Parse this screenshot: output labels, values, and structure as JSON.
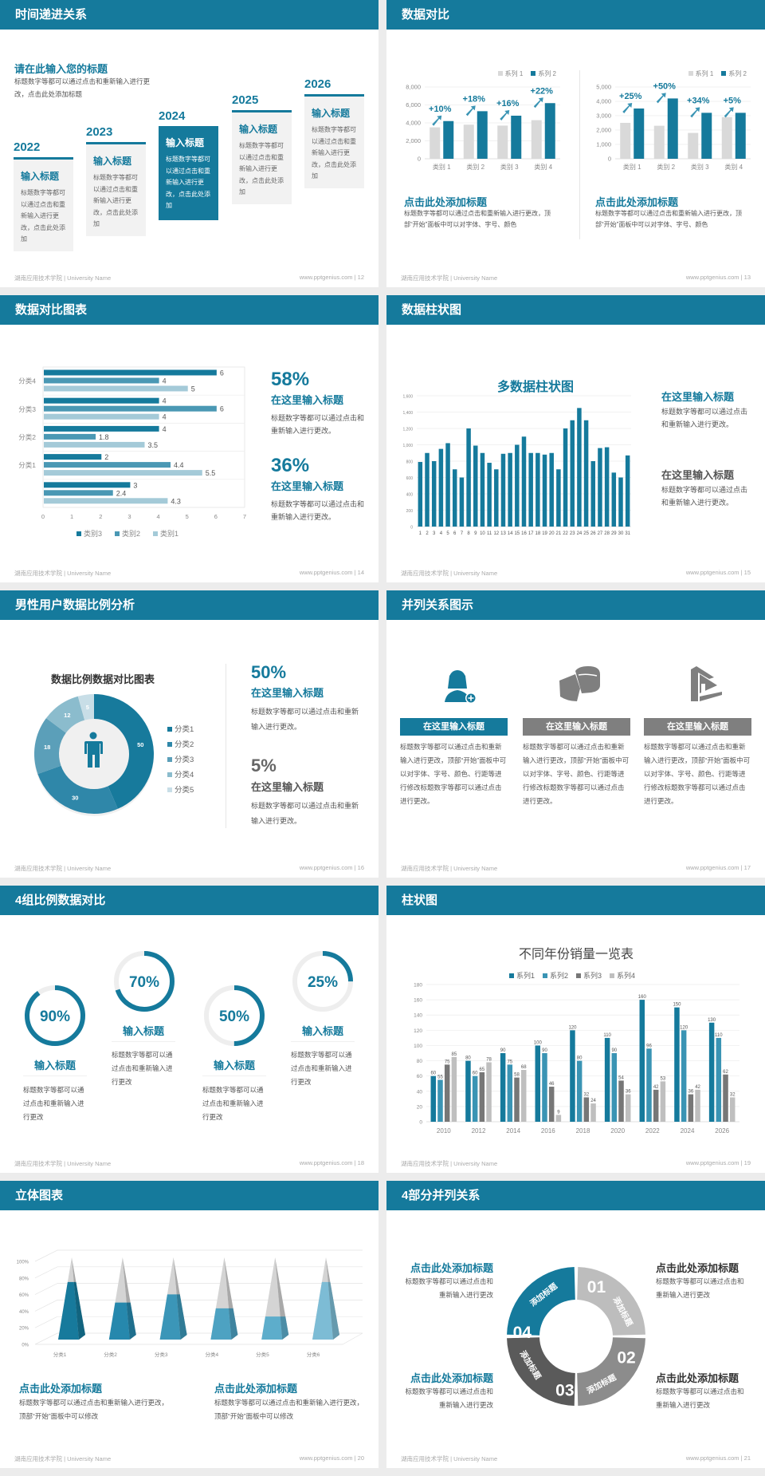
{
  "footer": {
    "left": "湖南应用技术学院 | University Name",
    "site": "www.pptgenius.com"
  },
  "colors": {
    "primary": "#157a9c",
    "secondary": "#3a94b4",
    "gray": "#d9d9d9",
    "dark_gray": "#7f7f7f"
  },
  "slides": [
    {
      "page": "| 12",
      "title": "时间递进关系",
      "subtitle": "请在此输入您的标题",
      "desc": "标题数字等都可以通过点击和重新输入进行更改，点击此处添加标题",
      "steps": [
        {
          "year": "2022",
          "heading": "输入标题",
          "body": "标题数字等都可以通过点击和重新输入进行更改，点击此处添加"
        },
        {
          "year": "2023",
          "heading": "输入标题",
          "body": "标题数字等都可以通过点击和重新输入进行更改，点击此处添加"
        },
        {
          "year": "2024",
          "heading": "输入标题",
          "body": "标题数字等都可以通过点击和重新输入进行更改，点击此处添加"
        },
        {
          "year": "2025",
          "heading": "输入标题",
          "body": "标题数字等都可以通过点击和重新输入进行更改，点击此处添加"
        },
        {
          "year": "2026",
          "heading": "输入标题",
          "body": "标题数字等都可以通过点击和重新输入进行更改，点击此处添加"
        }
      ]
    },
    {
      "page": "| 13",
      "title": "数据对比",
      "panels": [
        {
          "heading": "点击此处添加标题",
          "body": "标题数字等都可以通过点击和重新输入进行更改，顶部“开始”面板中可以对字体、字号、颜色"
        },
        {
          "heading": "点击此处添加标题",
          "body": "标题数字等都可以通过点击和重新输入进行更改，顶部“开始”面板中可以对字体、字号、颜色"
        }
      ]
    },
    {
      "page": "| 14",
      "title": "数据对比图表",
      "stats": [
        {
          "value": "58%",
          "heading": "在这里输入标题",
          "body": "标题数字等都可以通过点击和重新输入进行更改。"
        },
        {
          "value": "36%",
          "heading": "在这里输入标题",
          "body": "标题数字等都可以通过点击和重新输入进行更改。"
        }
      ]
    },
    {
      "page": "| 15",
      "title": "数据柱状图",
      "texts": [
        {
          "heading": "在这里输入标题",
          "body": "标题数字等都可以通过点击和重新输入进行更改。"
        },
        {
          "heading": "在这里输入标题",
          "body": "标题数字等都可以通过点击和重新输入进行更改。"
        }
      ]
    },
    {
      "page": "| 16",
      "title": "男性用户数据比例分析",
      "stats": [
        {
          "value": "50%",
          "heading": "在这里输入标题",
          "body": "标题数字等都可以通过点击和重新输入进行更改。"
        },
        {
          "value": "5%",
          "heading": "在这里输入标题",
          "body": "标题数字等都可以通过点击和重新输入进行更改。"
        }
      ]
    },
    {
      "page": "| 17",
      "title": "并列关系图示",
      "items": [
        {
          "icon": "female-user-add-icon",
          "heading": "在这里输入标题",
          "body": "标题数字等都可以通过点击和重新输入进行更改，顶部“开始”面板中可以对字体、字号、颜色、行距等进行修改标题数字等都可以通过点击进行更改。"
        },
        {
          "icon": "pie-chart-3d-icon",
          "heading": "在这里输入标题",
          "body": "标题数字等都可以通过点击和重新输入进行更改，顶部“开始”面板中可以对字体、字号、颜色、行距等进行修改标题数字等都可以通过点击进行更改。"
        },
        {
          "icon": "building-icon",
          "heading": "在这里输入标题",
          "body": "标题数字等都可以通过点击和重新输入进行更改，顶部“开始”面板中可以对字体、字号、颜色、行距等进行修改标题数字等都可以通过点击进行更改。"
        }
      ]
    },
    {
      "page": "| 18",
      "title": "4组比例数据对比",
      "rings": [
        {
          "percent": 90,
          "label": "90%",
          "heading": "输入标题",
          "body": "标题数字等都可以通过点击和重新输入进行更改"
        },
        {
          "percent": 70,
          "label": "70%",
          "heading": "输入标题",
          "body": "标题数字等都可以通过点击和重新输入进行更改"
        },
        {
          "percent": 50,
          "label": "50%",
          "heading": "输入标题",
          "body": "标题数字等都可以通过点击和重新输入进行更改"
        },
        {
          "percent": 25,
          "label": "25%",
          "heading": "输入标题",
          "body": "标题数字等都可以通过点击和重新输入进行更改"
        }
      ]
    },
    {
      "page": "| 19",
      "title": "柱状图"
    },
    {
      "page": "| 20",
      "title": "立体图表",
      "panels": [
        {
          "heading": "点击此处添加标题",
          "body": "标题数字等都可以通过点击和重新输入进行更改，顶部“开始”面板中可以修改"
        },
        {
          "heading": "点击此处添加标题",
          "body": "标题数字等都可以通过点击和重新输入进行更改，顶部“开始”面板中可以修改"
        }
      ]
    },
    {
      "page": "| 21",
      "title": "4部分并列关系",
      "segments": [
        {
          "num": "01",
          "label": "添加标题"
        },
        {
          "num": "02",
          "label": "添加标题"
        },
        {
          "num": "03",
          "label": "添加标题"
        },
        {
          "num": "04",
          "label": "添加标题"
        }
      ],
      "texts": [
        {
          "heading": "点击此处添加标题",
          "body": "标题数字等都可以通过点击和重新输入进行更改"
        },
        {
          "heading": "点击此处添加标题",
          "body": "标题数字等都可以通过点击和重新输入进行更改"
        },
        {
          "heading": "点击此处添加标题",
          "body": "标题数字等都可以通过点击和重新输入进行更改"
        },
        {
          "heading": "点击此处添加标题",
          "body": "标题数字等都可以通过点击和重新输入进行更改"
        }
      ]
    }
  ],
  "chart_data": [
    {
      "type": "bar",
      "categories": [
        "类别 1",
        "类别 2",
        "类别 3",
        "类别 4"
      ],
      "series": [
        {
          "name": "系列 1",
          "values": [
            3500,
            3800,
            3700,
            4300
          ],
          "color": "#d9d9d9"
        },
        {
          "name": "系列 2",
          "values": [
            4200,
            5300,
            4800,
            6200
          ],
          "color": "#157a9c"
        }
      ],
      "annotations": [
        "+10%",
        "+18%",
        "+16%",
        "+22%"
      ],
      "ylim": [
        0,
        8000
      ],
      "yticks": [
        0,
        2000,
        4000,
        6000,
        8000
      ],
      "legend": "top-right",
      "grid": true
    },
    {
      "type": "bar",
      "categories": [
        "类别 1",
        "类别 2",
        "类别 3",
        "类别 4"
      ],
      "series": [
        {
          "name": "系列 1",
          "values": [
            2500,
            2300,
            1800,
            2900
          ],
          "color": "#d9d9d9"
        },
        {
          "name": "系列 2",
          "values": [
            3500,
            4200,
            3200,
            3200
          ],
          "color": "#157a9c"
        }
      ],
      "annotations": [
        "+25%",
        "+50%",
        "+34%",
        "+5%"
      ],
      "ylim": [
        0,
        5000
      ],
      "yticks": [
        0,
        1000,
        2000,
        3000,
        4000,
        5000
      ],
      "legend": "top-right",
      "grid": true
    },
    {
      "type": "bar",
      "orientation": "horizontal",
      "categories": [
        "分类4",
        "分类3",
        "分类2",
        "分类1",
        ""
      ],
      "series": [
        {
          "name": "类别3",
          "values": [
            6,
            4,
            4,
            2,
            3
          ],
          "color": "#157a9c"
        },
        {
          "name": "类别2",
          "values": [
            4,
            6,
            1.8,
            4.4,
            2.4
          ],
          "color": "#4a98b4"
        },
        {
          "name": "类别1",
          "values": [
            5,
            4,
            3.5,
            5.5,
            4.3
          ],
          "color": "#a4cad8"
        }
      ],
      "xlim": [
        0,
        7
      ],
      "xticks": [
        0,
        1,
        2,
        3,
        4,
        5,
        6,
        7
      ],
      "legend": "bottom",
      "grid": true
    },
    {
      "type": "bar",
      "title": "多数据柱状图",
      "categories": [
        "1",
        "2",
        "3",
        "4",
        "5",
        "6",
        "7",
        "8",
        "9",
        "10",
        "11",
        "12",
        "13",
        "14",
        "15",
        "16",
        "17",
        "18",
        "19",
        "20",
        "21",
        "22",
        "23",
        "24",
        "25",
        "26",
        "27",
        "28",
        "29",
        "30",
        "31"
      ],
      "values": [
        790,
        900,
        800,
        950,
        1020,
        700,
        600,
        1200,
        990,
        900,
        780,
        700,
        890,
        900,
        1000,
        1100,
        900,
        900,
        880,
        900,
        700,
        1200,
        1300,
        1450,
        1300,
        800,
        960,
        970,
        660,
        600,
        870
      ],
      "ylim": [
        0,
        1600
      ],
      "yticks": [
        0,
        200,
        400,
        600,
        800,
        1000,
        1200,
        1400,
        1600
      ],
      "grid": true
    },
    {
      "type": "pie",
      "variant": "donut",
      "title": "数据比例数据对比图表",
      "categories": [
        "分类1",
        "分类2",
        "分类3",
        "分类4",
        "分类5"
      ],
      "values": [
        50,
        30,
        18,
        12,
        5
      ],
      "colors": [
        "#177a9c",
        "#2f87a9",
        "#5b9fb9",
        "#8bbccd",
        "#c8dee7"
      ],
      "legend": "right"
    },
    {
      "type": "bar",
      "title": "不同年份销量一览表",
      "categories": [
        "2010",
        "2012",
        "2014",
        "2016",
        "2018",
        "2020",
        "2022",
        "2024",
        "2026"
      ],
      "series": [
        {
          "name": "系列1",
          "values": [
            60,
            80,
            90,
            100,
            120,
            110,
            160,
            150,
            130
          ],
          "color": "#157a9c"
        },
        {
          "name": "系列2",
          "values": [
            55,
            60,
            75,
            90,
            80,
            90,
            96,
            120,
            110
          ],
          "color": "#3a94b4"
        },
        {
          "name": "系列3",
          "values": [
            75,
            65,
            58,
            46,
            32,
            54,
            42,
            36,
            62
          ],
          "color": "#777777"
        },
        {
          "name": "系列4",
          "values": [
            85,
            78,
            68,
            9,
            24,
            36,
            53,
            42,
            32
          ],
          "color": "#bfbfbf"
        }
      ],
      "ylim": [
        0,
        180
      ],
      "yticks": [
        0,
        20,
        40,
        60,
        80,
        100,
        120,
        140,
        160,
        180
      ],
      "legend": "top",
      "grid": true,
      "data_labels": true
    },
    {
      "type": "bar",
      "variant": "3d-pyramid",
      "categories": [
        "分类1",
        "分类2",
        "分类3",
        "分类4",
        "分类5",
        "分类6"
      ],
      "values": [
        70,
        45,
        55,
        38,
        28,
        70
      ],
      "ylim": [
        0,
        100
      ],
      "yticks": [
        "0%",
        "20%",
        "40%",
        "60%",
        "80%",
        "100%"
      ],
      "colors": [
        "#177a9c",
        "#2688ad",
        "#3b96b8",
        "#4da2c2",
        "#5dadcb",
        "#7dbcd5"
      ],
      "grid": true
    }
  ]
}
